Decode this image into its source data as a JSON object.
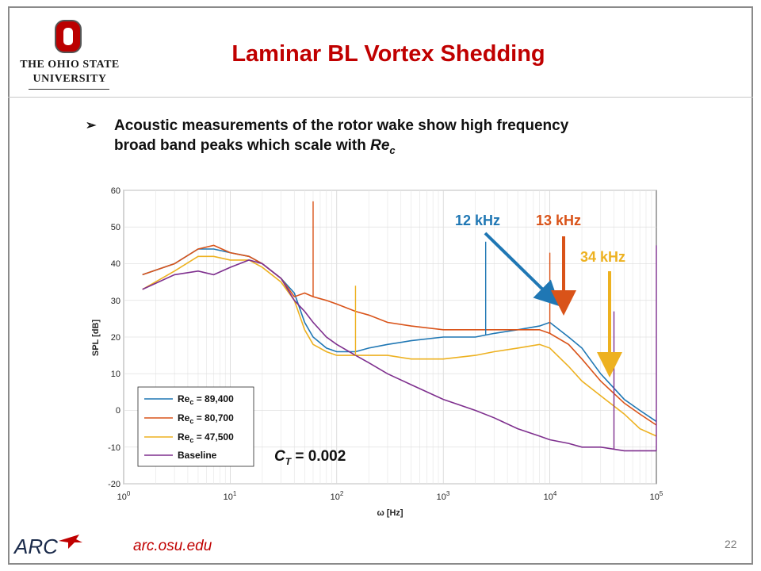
{
  "slide": {
    "title": "Laminar BL Vortex Shedding",
    "university_line1": "The Ohio State",
    "university_line2": "University",
    "bullet_arrow": "➢",
    "bullet_text_line1": "Acoustic measurements of the rotor wake show high frequency",
    "bullet_text_line2_prefix": "broad band peaks which scale with ",
    "bullet_text_re": "Re",
    "bullet_text_sub": "c",
    "footer_logo": "ARC",
    "footer_link": "arc.osu.edu",
    "page_number": "22"
  },
  "colors": {
    "brand_red": "#c00000",
    "blue": "#1f77b4",
    "orange": "#d95319",
    "yellow": "#edb120",
    "purple": "#7e2f8e"
  },
  "chart_data": {
    "type": "line",
    "x_scale": "log",
    "xlim": [
      1,
      100000
    ],
    "ylim": [
      -20,
      60
    ],
    "xlabel": "ω [Hz]",
    "ylabel": "SPL [dB]",
    "y_ticks": [
      "60",
      "50",
      "40",
      "30",
      "20",
      "10",
      "0",
      "-10",
      "-20"
    ],
    "x_tick_base": [
      "10",
      "10",
      "10",
      "10",
      "10",
      "10"
    ],
    "x_tick_exp": [
      "0",
      "1",
      "2",
      "3",
      "4",
      "5"
    ],
    "series": [
      {
        "name": "89,400",
        "color": "#1f77b4",
        "x": [
          1.5,
          3,
          5,
          7,
          10,
          15,
          20,
          30,
          40,
          50,
          60,
          80,
          100,
          150,
          200,
          300,
          500,
          1000,
          2000,
          3000,
          5000,
          8000,
          10000,
          15000,
          20000,
          30000,
          50000,
          70000,
          100000
        ],
        "y": [
          37,
          40,
          44,
          44,
          43,
          42,
          40,
          36,
          32,
          24,
          20,
          17,
          16,
          16,
          17,
          18,
          19,
          20,
          20,
          21,
          22,
          23,
          24,
          20,
          17,
          10,
          3,
          0,
          -3
        ]
      },
      {
        "name": "80,700",
        "color": "#d95319",
        "x": [
          1.5,
          3,
          5,
          7,
          10,
          15,
          20,
          30,
          40,
          50,
          60,
          80,
          100,
          150,
          200,
          300,
          500,
          1000,
          2000,
          3000,
          5000,
          8000,
          10000,
          15000,
          20000,
          30000,
          50000,
          70000,
          100000
        ],
        "y": [
          37,
          40,
          44,
          45,
          43,
          42,
          40,
          36,
          31,
          32,
          31,
          30,
          29,
          27,
          26,
          24,
          23,
          22,
          22,
          22,
          22,
          22,
          21,
          18,
          14,
          8,
          2,
          -1,
          -4
        ]
      },
      {
        "name": "47,500",
        "color": "#edb120",
        "x": [
          1.5,
          3,
          5,
          7,
          10,
          15,
          20,
          30,
          40,
          50,
          60,
          80,
          100,
          150,
          200,
          300,
          500,
          1000,
          2000,
          3000,
          5000,
          8000,
          10000,
          15000,
          20000,
          30000,
          50000,
          70000,
          100000
        ],
        "y": [
          33,
          38,
          42,
          42,
          41,
          41,
          39,
          35,
          30,
          22,
          18,
          16,
          15,
          15,
          15,
          15,
          14,
          14,
          15,
          16,
          17,
          18,
          17,
          12,
          8,
          4,
          -1,
          -5,
          -7
        ]
      },
      {
        "name": "Baseline",
        "color": "#7e2f8e",
        "x": [
          1.5,
          3,
          5,
          7,
          10,
          15,
          20,
          30,
          40,
          50,
          60,
          80,
          100,
          150,
          200,
          300,
          500,
          1000,
          2000,
          3000,
          5000,
          8000,
          10000,
          15000,
          20000,
          30000,
          50000,
          70000,
          100000
        ],
        "y": [
          33,
          37,
          38,
          37,
          39,
          41,
          40,
          36,
          30,
          27,
          24,
          20,
          18,
          15,
          13,
          10,
          7,
          3,
          0,
          -2,
          -5,
          -7,
          -8,
          -9,
          -10,
          -10,
          -11,
          -11,
          -11
        ]
      }
    ],
    "peaks": [
      {
        "x": 60,
        "y": 57,
        "series": "80,700"
      },
      {
        "x": 150,
        "y": 34,
        "series": "47,500"
      },
      {
        "x": 2500,
        "y": 46,
        "series": "89,400"
      },
      {
        "x": 10000,
        "y": 43,
        "series": "80,700"
      },
      {
        "x": 40000,
        "y": 27,
        "series": "Baseline"
      },
      {
        "x": 100000,
        "y": 45,
        "series": "Baseline"
      }
    ],
    "legend": {
      "prefix": "Re",
      "sub": "c",
      "entries": [
        " = 89,400",
        " = 80,700",
        " = 47,500"
      ],
      "baseline_label": "Baseline",
      "placement": "bottom-left"
    },
    "annotations": [
      {
        "text": "12 kHz",
        "color": "#1f77b4"
      },
      {
        "text": "13 kHz",
        "color": "#d95319"
      },
      {
        "text": "34 kHz",
        "color": "#edb120"
      }
    ],
    "ct_prefix": "C",
    "ct_sub": "T",
    "ct_value": " = 0.002"
  }
}
